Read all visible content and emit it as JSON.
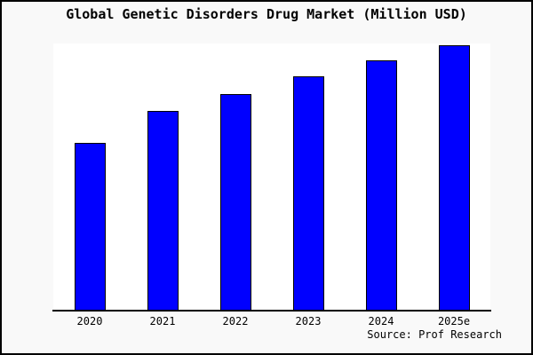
{
  "chart_data": {
    "type": "bar",
    "title": "Global Genetic Disorders Drug Market (Million USD)",
    "categories": [
      "2020",
      "2021",
      "2022",
      "2023",
      "2024",
      "2025e"
    ],
    "values": [
      630,
      750,
      815,
      880,
      940,
      1000
    ],
    "values_estimated_from_bar_heights": true,
    "xlabel": "",
    "ylabel": "",
    "ylim": [
      0,
      1005
    ],
    "grid": false,
    "legend": false,
    "bar_color": "#0000ff",
    "bar_edge_color": "#000000",
    "plot_background": "#ffffff",
    "frame_background": "#f9f9f9",
    "axis_color": "#000000"
  },
  "source": {
    "text": "Source: Prof Research"
  }
}
